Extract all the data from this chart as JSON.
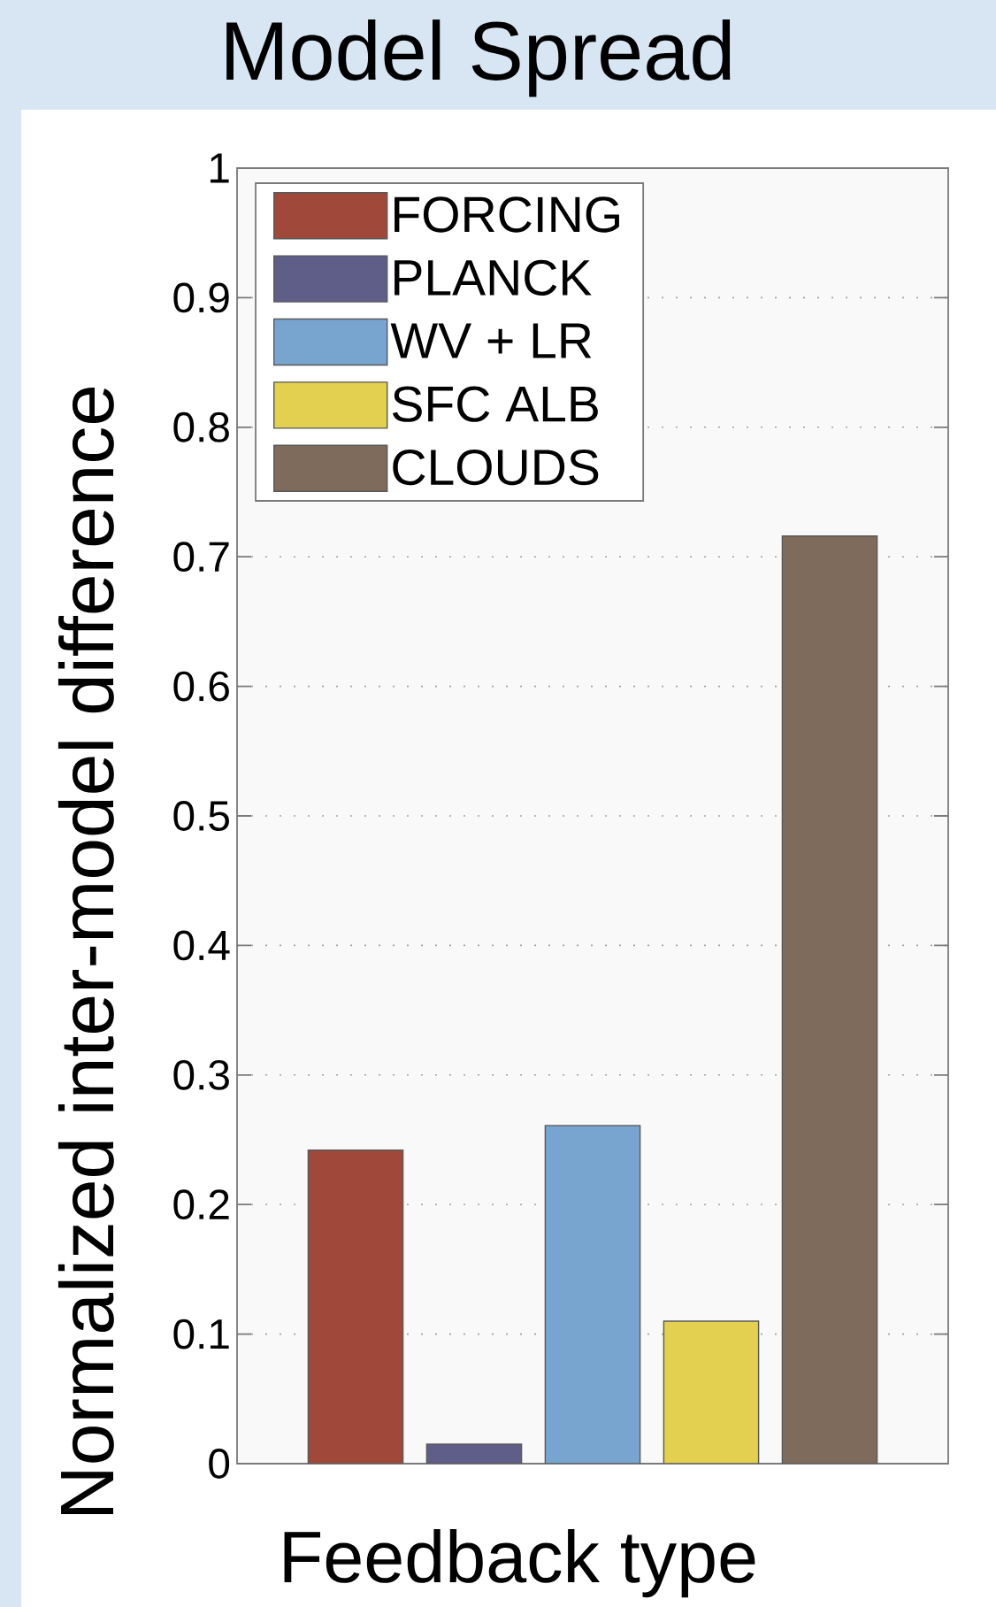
{
  "chart_data": {
    "type": "bar",
    "title": "Model Spread",
    "xlabel": "Feedback type",
    "ylabel": "Normalized inter-model difference",
    "categories": [
      null,
      null,
      null,
      null,
      null
    ],
    "series": [
      {
        "name": "FORCING",
        "color": "#a0483a",
        "values": [
          0.242,
          null,
          null,
          null,
          null
        ]
      },
      {
        "name": "PLANCK",
        "color": "#5f5e88",
        "values": [
          null,
          0.015,
          null,
          null,
          null
        ]
      },
      {
        "name": "WV + LR",
        "color": "#78a4d0",
        "values": [
          null,
          null,
          0.261,
          null,
          null
        ]
      },
      {
        "name": "SFC ALB",
        "color": "#e3d050",
        "values": [
          null,
          null,
          null,
          0.11,
          null
        ]
      },
      {
        "name": "CLOUDS",
        "color": "#7f6b5b",
        "values": [
          null,
          null,
          null,
          null,
          0.716
        ]
      }
    ],
    "ylim": [
      0,
      1
    ],
    "yticks": [
      0,
      0.1,
      0.2,
      0.3,
      0.4,
      0.5,
      0.6,
      0.7,
      0.8,
      0.9,
      1
    ],
    "grid": "y",
    "legend": "top left"
  }
}
